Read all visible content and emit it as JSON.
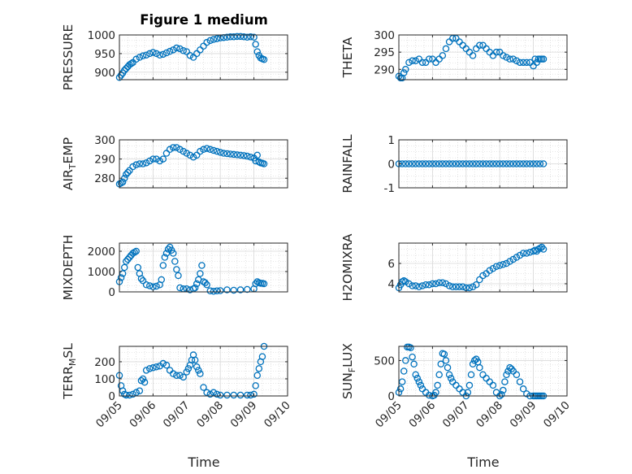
{
  "figure": {
    "title": "Figure 1 medium",
    "xlabel": "Time",
    "xticks": [
      "09/05",
      "09/06",
      "09/07",
      "09/08",
      "09/09",
      "09/10"
    ],
    "marker_color": "#0072BD",
    "axes_color": "#262626"
  },
  "chart_data": [
    {
      "type": "scatter",
      "marker": "circle-open",
      "ylabel": "PRESSURE",
      "title": "Figure 1 medium",
      "xlim": [
        0,
        5
      ],
      "ylim": [
        880,
        1000
      ],
      "yticks": [
        900,
        950,
        1000
      ],
      "ytick_labels": [
        "900",
        "950",
        "1000"
      ],
      "grid": true,
      "x": [
        0.0,
        0.05,
        0.1,
        0.15,
        0.2,
        0.25,
        0.3,
        0.35,
        0.4,
        0.5,
        0.6,
        0.7,
        0.8,
        0.9,
        1.0,
        1.1,
        1.2,
        1.3,
        1.4,
        1.5,
        1.6,
        1.7,
        1.8,
        1.9,
        2.0,
        2.1,
        2.2,
        2.3,
        2.4,
        2.5,
        2.6,
        2.7,
        2.8,
        2.9,
        3.0,
        3.1,
        3.2,
        3.3,
        3.4,
        3.5,
        3.6,
        3.7,
        3.8,
        3.9,
        4.0,
        4.05,
        4.1,
        4.15,
        4.2,
        4.25,
        4.3
      ],
      "values": [
        886,
        892,
        898,
        905,
        910,
        915,
        920,
        923,
        926,
        935,
        940,
        944,
        946,
        950,
        953,
        950,
        946,
        948,
        952,
        956,
        960,
        965,
        963,
        958,
        955,
        945,
        940,
        950,
        960,
        970,
        980,
        985,
        988,
        990,
        992,
        993,
        994,
        995,
        995,
        996,
        996,
        995,
        994,
        995,
        994,
        975,
        955,
        945,
        938,
        936,
        934
      ]
    },
    {
      "type": "scatter",
      "marker": "circle-open",
      "ylabel": "THETA",
      "xlim": [
        0,
        5
      ],
      "ylim": [
        287,
        300
      ],
      "yticks": [
        290,
        295,
        300
      ],
      "ytick_labels": [
        "290",
        "295",
        "300"
      ],
      "grid": true,
      "x": [
        0.0,
        0.05,
        0.1,
        0.15,
        0.2,
        0.3,
        0.4,
        0.5,
        0.6,
        0.7,
        0.8,
        0.9,
        1.0,
        1.1,
        1.2,
        1.3,
        1.4,
        1.5,
        1.6,
        1.7,
        1.8,
        1.9,
        2.0,
        2.1,
        2.2,
        2.3,
        2.4,
        2.5,
        2.6,
        2.7,
        2.8,
        2.9,
        3.0,
        3.1,
        3.2,
        3.3,
        3.4,
        3.5,
        3.6,
        3.7,
        3.8,
        3.9,
        4.0,
        4.05,
        4.1,
        4.15,
        4.2,
        4.25,
        4.3
      ],
      "values": [
        288,
        287.5,
        287.5,
        289,
        290,
        292,
        292.5,
        292.5,
        293,
        292,
        292,
        293,
        293,
        292,
        293,
        294,
        296,
        298,
        299,
        299,
        298,
        297,
        296,
        295,
        294,
        296,
        297,
        297,
        296,
        295,
        294,
        295,
        295,
        294,
        293.5,
        293,
        293,
        292.5,
        292,
        292,
        292,
        292,
        291,
        293,
        292,
        293,
        293,
        293,
        293
      ]
    },
    {
      "type": "scatter",
      "marker": "circle-open",
      "ylabel": "AIR_TEMP",
      "ylabel_sub": "T",
      "xlim": [
        0,
        5
      ],
      "ylim": [
        275,
        300
      ],
      "yticks": [
        280,
        290,
        300
      ],
      "ytick_labels": [
        "280",
        "290",
        "300"
      ],
      "grid": true,
      "x": [
        0.0,
        0.05,
        0.1,
        0.15,
        0.2,
        0.25,
        0.3,
        0.4,
        0.5,
        0.6,
        0.7,
        0.8,
        0.9,
        1.0,
        1.1,
        1.2,
        1.3,
        1.4,
        1.5,
        1.6,
        1.7,
        1.8,
        1.9,
        2.0,
        2.1,
        2.2,
        2.3,
        2.4,
        2.5,
        2.6,
        2.7,
        2.8,
        2.9,
        3.0,
        3.1,
        3.2,
        3.3,
        3.4,
        3.5,
        3.6,
        3.7,
        3.8,
        3.9,
        4.0,
        4.05,
        4.1,
        4.15,
        4.2,
        4.25,
        4.3
      ],
      "values": [
        277,
        277.5,
        278,
        280,
        282,
        283,
        284,
        286,
        287,
        287.5,
        287.5,
        288,
        289,
        290,
        290,
        289,
        290,
        293,
        295,
        296,
        296,
        295,
        294,
        293,
        292,
        291,
        292,
        294,
        295,
        295.5,
        295,
        294.5,
        294,
        293.5,
        293,
        292.8,
        292.6,
        292.4,
        292.2,
        292,
        291.8,
        291.5,
        291,
        290.5,
        289,
        292,
        288.5,
        288,
        287.8,
        287.5
      ]
    },
    {
      "type": "scatter",
      "marker": "circle-open",
      "ylabel": "RAINFALL",
      "xlim": [
        0,
        5
      ],
      "ylim": [
        -1,
        1
      ],
      "yticks": [
        -1,
        0,
        1
      ],
      "ytick_labels": [
        "-1",
        "0",
        "1"
      ],
      "grid": true,
      "x": [
        0.0,
        0.1,
        0.2,
        0.3,
        0.4,
        0.5,
        0.6,
        0.7,
        0.8,
        0.9,
        1.0,
        1.1,
        1.2,
        1.3,
        1.4,
        1.5,
        1.6,
        1.7,
        1.8,
        1.9,
        2.0,
        2.1,
        2.2,
        2.3,
        2.4,
        2.5,
        2.6,
        2.7,
        2.8,
        2.9,
        3.0,
        3.1,
        3.2,
        3.3,
        3.4,
        3.5,
        3.6,
        3.7,
        3.8,
        3.9,
        4.0,
        4.1,
        4.2,
        4.3
      ],
      "values": [
        0,
        0,
        0,
        0,
        0,
        0,
        0,
        0,
        0,
        0,
        0,
        0,
        0,
        0,
        0,
        0,
        0,
        0,
        0,
        0,
        0,
        0,
        0,
        0,
        0,
        0,
        0,
        0,
        0,
        0,
        0,
        0,
        0,
        0,
        0,
        0,
        0,
        0,
        0,
        0,
        0,
        0,
        0,
        0
      ]
    },
    {
      "type": "scatter",
      "marker": "circle-open",
      "ylabel": "MIXDEPTH",
      "xlim": [
        0,
        5
      ],
      "ylim": [
        0,
        2400
      ],
      "yticks": [
        0,
        1000,
        2000
      ],
      "ytick_labels": [
        "0",
        "1000",
        "2000"
      ],
      "grid": true,
      "x": [
        0.0,
        0.05,
        0.1,
        0.15,
        0.2,
        0.25,
        0.3,
        0.35,
        0.4,
        0.45,
        0.5,
        0.55,
        0.6,
        0.65,
        0.7,
        0.8,
        0.9,
        1.0,
        1.1,
        1.2,
        1.25,
        1.3,
        1.35,
        1.4,
        1.45,
        1.5,
        1.55,
        1.6,
        1.65,
        1.7,
        1.75,
        1.8,
        1.9,
        2.0,
        2.1,
        2.2,
        2.25,
        2.3,
        2.35,
        2.4,
        2.45,
        2.5,
        2.55,
        2.6,
        2.7,
        2.8,
        2.9,
        3.0,
        3.2,
        3.4,
        3.6,
        3.8,
        4.0,
        4.05,
        4.1,
        4.15,
        4.2,
        4.25,
        4.3
      ],
      "values": [
        500,
        700,
        900,
        1200,
        1500,
        1600,
        1700,
        1800,
        1900,
        1950,
        2000,
        1200,
        900,
        650,
        550,
        350,
        300,
        250,
        280,
        350,
        600,
        1300,
        1700,
        1900,
        2100,
        2200,
        2050,
        1900,
        1500,
        1100,
        800,
        200,
        150,
        150,
        100,
        150,
        200,
        400,
        600,
        900,
        1300,
        500,
        450,
        350,
        50,
        30,
        50,
        60,
        100,
        80,
        100,
        120,
        150,
        400,
        500,
        450,
        420,
        420,
        400
      ]
    },
    {
      "type": "scatter",
      "marker": "circle-open",
      "ylabel": "H2OMIXRA",
      "xlim": [
        0,
        5
      ],
      "ylim": [
        3.2,
        8
      ],
      "yticks": [
        4,
        6
      ],
      "ytick_labels": [
        "4",
        "6"
      ],
      "grid": true,
      "x": [
        0.0,
        0.05,
        0.1,
        0.15,
        0.2,
        0.3,
        0.4,
        0.5,
        0.6,
        0.7,
        0.8,
        0.9,
        1.0,
        1.1,
        1.2,
        1.3,
        1.4,
        1.5,
        1.6,
        1.7,
        1.8,
        1.9,
        2.0,
        2.1,
        2.2,
        2.3,
        2.4,
        2.5,
        2.6,
        2.7,
        2.8,
        2.9,
        3.0,
        3.1,
        3.2,
        3.3,
        3.4,
        3.5,
        3.6,
        3.7,
        3.8,
        3.9,
        4.0,
        4.05,
        4.1,
        4.15,
        4.2,
        4.25,
        4.3
      ],
      "values": [
        3.6,
        3.9,
        4.2,
        4.3,
        4.2,
        4.0,
        3.8,
        3.8,
        3.7,
        3.8,
        3.9,
        3.9,
        4.0,
        4.0,
        4.1,
        4.1,
        4.0,
        3.8,
        3.7,
        3.7,
        3.7,
        3.7,
        3.6,
        3.6,
        3.7,
        3.9,
        4.4,
        4.8,
        5.0,
        5.3,
        5.5,
        5.7,
        5.8,
        5.9,
        6.0,
        6.2,
        6.4,
        6.6,
        6.8,
        7.0,
        7.0,
        7.1,
        7.2,
        7.3,
        7.2,
        7.4,
        7.5,
        7.6,
        7.4
      ]
    },
    {
      "type": "scatter",
      "marker": "circle-open",
      "ylabel": "TERR_MSL",
      "ylabel_sub": "M",
      "xlim": [
        0,
        5
      ],
      "ylim": [
        0,
        290
      ],
      "yticks": [
        0,
        100,
        200
      ],
      "ytick_labels": [
        "0",
        "100",
        "200"
      ],
      "grid": true,
      "x": [
        0.0,
        0.05,
        0.1,
        0.15,
        0.2,
        0.3,
        0.4,
        0.5,
        0.6,
        0.65,
        0.7,
        0.75,
        0.8,
        0.9,
        1.0,
        1.1,
        1.2,
        1.3,
        1.4,
        1.5,
        1.6,
        1.7,
        1.8,
        1.9,
        2.0,
        2.05,
        2.1,
        2.15,
        2.2,
        2.25,
        2.3,
        2.35,
        2.4,
        2.5,
        2.6,
        2.7,
        2.8,
        2.9,
        3.0,
        3.2,
        3.4,
        3.6,
        3.8,
        3.9,
        4.0,
        4.05,
        4.1,
        4.15,
        4.2,
        4.25,
        4.3
      ],
      "values": [
        120,
        60,
        30,
        10,
        5,
        5,
        10,
        20,
        30,
        90,
        100,
        80,
        150,
        160,
        165,
        170,
        175,
        190,
        180,
        150,
        130,
        120,
        120,
        110,
        140,
        160,
        180,
        210,
        240,
        210,
        170,
        150,
        130,
        50,
        20,
        10,
        20,
        10,
        5,
        5,
        5,
        5,
        5,
        5,
        10,
        60,
        120,
        160,
        200,
        230,
        290
      ]
    },
    {
      "type": "scatter",
      "marker": "circle-open",
      "ylabel": "SUN_FLUX",
      "ylabel_sub": "F",
      "xlim": [
        0,
        5
      ],
      "ylim": [
        0,
        700
      ],
      "yticks": [
        0,
        500
      ],
      "ytick_labels": [
        "0",
        "500"
      ],
      "grid": true,
      "x": [
        0.0,
        0.05,
        0.1,
        0.15,
        0.2,
        0.25,
        0.3,
        0.35,
        0.4,
        0.45,
        0.5,
        0.55,
        0.6,
        0.65,
        0.7,
        0.8,
        0.9,
        1.0,
        1.05,
        1.1,
        1.15,
        1.2,
        1.25,
        1.3,
        1.35,
        1.4,
        1.45,
        1.5,
        1.55,
        1.6,
        1.7,
        1.8,
        1.9,
        2.0,
        2.05,
        2.1,
        2.15,
        2.2,
        2.25,
        2.3,
        2.35,
        2.4,
        2.5,
        2.6,
        2.7,
        2.8,
        2.9,
        3.0,
        3.05,
        3.1,
        3.15,
        3.2,
        3.25,
        3.3,
        3.35,
        3.4,
        3.5,
        3.6,
        3.7,
        3.8,
        3.9,
        4.0,
        4.05,
        4.1,
        4.15,
        4.2,
        4.25,
        4.3
      ],
      "values": [
        50,
        100,
        200,
        350,
        500,
        690,
        690,
        680,
        550,
        450,
        300,
        250,
        200,
        150,
        100,
        50,
        10,
        0,
        10,
        50,
        150,
        300,
        450,
        600,
        590,
        500,
        400,
        300,
        250,
        200,
        150,
        100,
        50,
        0,
        50,
        150,
        300,
        450,
        500,
        520,
        480,
        400,
        300,
        250,
        200,
        150,
        50,
        0,
        20,
        80,
        200,
        300,
        350,
        400,
        380,
        350,
        300,
        200,
        100,
        30,
        0,
        0,
        0,
        0,
        0,
        0,
        0,
        0
      ]
    }
  ]
}
